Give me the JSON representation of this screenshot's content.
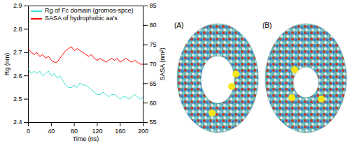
{
  "chart_data": {
    "type": "line",
    "xlabel": "Time (ns)",
    "ylabel": "Rg (nm)",
    "y2label": "SASA (nm²)",
    "x": [
      0,
      5,
      10,
      15,
      20,
      25,
      30,
      35,
      40,
      45,
      50,
      55,
      60,
      65,
      70,
      75,
      80,
      85,
      90,
      95,
      100,
      105,
      110,
      115,
      120,
      125,
      130,
      135,
      140,
      145,
      150,
      155,
      160,
      165,
      170,
      175,
      180,
      185,
      190,
      195,
      200
    ],
    "series": [
      {
        "name": "Rg of Fc domain (gromos-spce)",
        "color": "#40e0d0",
        "values": [
          2.63,
          2.61,
          2.62,
          2.61,
          2.62,
          2.6,
          2.61,
          2.62,
          2.6,
          2.61,
          2.59,
          2.6,
          2.58,
          2.56,
          2.55,
          2.55,
          2.56,
          2.55,
          2.57,
          2.56,
          2.56,
          2.55,
          2.54,
          2.53,
          2.52,
          2.52,
          2.53,
          2.52,
          2.51,
          2.52,
          2.52,
          2.51,
          2.5,
          2.51,
          2.51,
          2.5,
          2.51,
          2.52,
          2.51,
          2.5,
          2.51
        ]
      },
      {
        "name": "SASA of hydrophobic aa's",
        "color": "#ff0000",
        "axis": "y2",
        "values": [
          74,
          73,
          72.5,
          73,
          72,
          72.5,
          71.5,
          72,
          71,
          70.5,
          70.5,
          71.5,
          72.5,
          73.5,
          74,
          74.5,
          73.5,
          74,
          73.5,
          73,
          72.5,
          72,
          72.5,
          71.5,
          71,
          71.5,
          71,
          70.5,
          71,
          71.5,
          71,
          71.5,
          70.5,
          71,
          71.5,
          71,
          70.5,
          71,
          70.5,
          70,
          70
        ]
      }
    ],
    "xlim": [
      0,
      200
    ],
    "xticks": [
      0,
      40,
      80,
      120,
      160,
      200
    ],
    "ylim": [
      2.4,
      2.9
    ],
    "yticks": [
      2.4,
      2.5,
      2.6,
      2.7,
      2.8,
      2.9
    ],
    "y2lim": [
      55,
      85
    ],
    "y2ticks": [
      55,
      60,
      65,
      70,
      75,
      80,
      85
    ],
    "legend": "top"
  },
  "panels": [
    {
      "label": "(A)"
    },
    {
      "label": "(B)"
    }
  ]
}
